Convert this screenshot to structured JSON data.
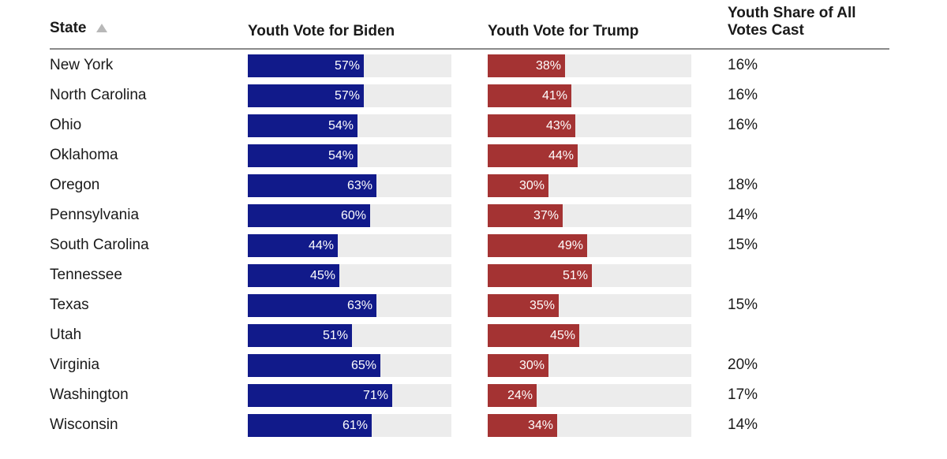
{
  "chart_data": {
    "type": "table",
    "headers": {
      "state": "State",
      "biden": "Youth Vote for Biden",
      "trump": "Youth Vote for Trump",
      "share": "Youth Share of All Votes Cast"
    },
    "sort": {
      "column": "state",
      "direction": "ascending"
    },
    "scale_max": 100,
    "rows": [
      {
        "state": "New York",
        "biden": 57,
        "biden_label": "57%",
        "trump": 38,
        "trump_label": "38%",
        "share": "16%"
      },
      {
        "state": "North Carolina",
        "biden": 57,
        "biden_label": "57%",
        "trump": 41,
        "trump_label": "41%",
        "share": "16%"
      },
      {
        "state": "Ohio",
        "biden": 54,
        "biden_label": "54%",
        "trump": 43,
        "trump_label": "43%",
        "share": "16%"
      },
      {
        "state": "Oklahoma",
        "biden": 54,
        "biden_label": "54%",
        "trump": 44,
        "trump_label": "44%",
        "share": ""
      },
      {
        "state": "Oregon",
        "biden": 63,
        "biden_label": "63%",
        "trump": 30,
        "trump_label": "30%",
        "share": "18%"
      },
      {
        "state": "Pennsylvania",
        "biden": 60,
        "biden_label": "60%",
        "trump": 37,
        "trump_label": "37%",
        "share": "14%"
      },
      {
        "state": "South Carolina",
        "biden": 44,
        "biden_label": "44%",
        "trump": 49,
        "trump_label": "49%",
        "share": "15%"
      },
      {
        "state": "Tennessee",
        "biden": 45,
        "biden_label": "45%",
        "trump": 51,
        "trump_label": "51%",
        "share": ""
      },
      {
        "state": "Texas",
        "biden": 63,
        "biden_label": "63%",
        "trump": 35,
        "trump_label": "35%",
        "share": "15%"
      },
      {
        "state": "Utah",
        "biden": 51,
        "biden_label": "51%",
        "trump": 45,
        "trump_label": "45%",
        "share": ""
      },
      {
        "state": "Virginia",
        "biden": 65,
        "biden_label": "65%",
        "trump": 30,
        "trump_label": "30%",
        "share": "20%"
      },
      {
        "state": "Washington",
        "biden": 71,
        "biden_label": "71%",
        "trump": 24,
        "trump_label": "24%",
        "share": "17%"
      },
      {
        "state": "Wisconsin",
        "biden": 61,
        "biden_label": "61%",
        "trump": 34,
        "trump_label": "34%",
        "share": "14%"
      }
    ],
    "colors": {
      "biden": "#111a8a",
      "trump": "#a43333",
      "track": "#ececec",
      "rule": "#8a8a8a",
      "sort_icon": "#b8b8b8"
    }
  }
}
